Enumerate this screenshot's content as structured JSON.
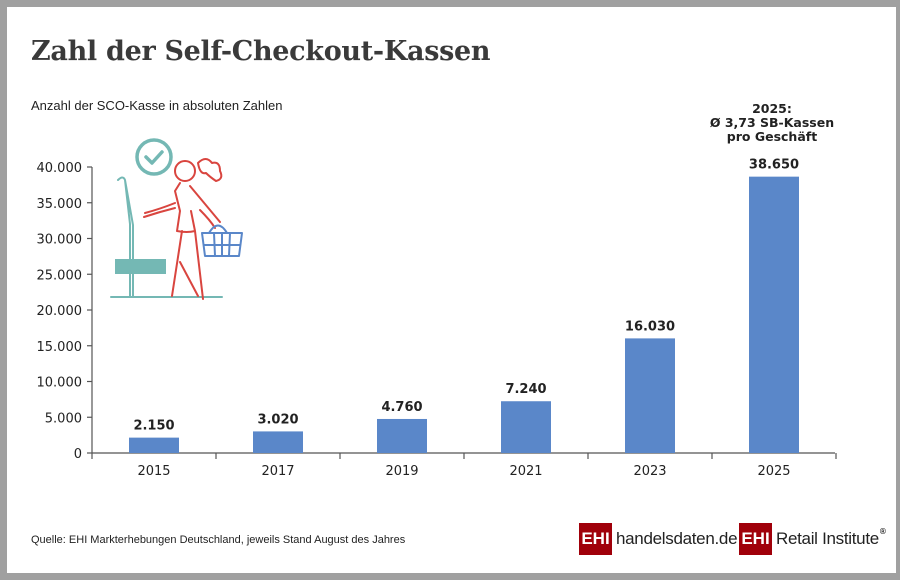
{
  "title": "Zahl der Self-Checkout-Kassen",
  "subtitle": "Anzahl der SCO-Kasse in absoluten Zahlen",
  "annotation": "2025:\nØ 3,73 SB-Kassen\npro Geschäft",
  "source": "Quelle: EHI Markterhebungen Deutschland, jeweils Stand August des Jahres",
  "logos": {
    "ehi": "EHI",
    "handelsdaten_text": "handelsdaten.de",
    "retail_text": "Retail Institute",
    "registered": "®"
  },
  "colors": {
    "bar": "#5a87c9",
    "brand_red": "#a0000a",
    "illustration_teal": "#74b8b4",
    "illustration_red": "#d9453f"
  },
  "chart_data": {
    "type": "bar",
    "categories": [
      "2015",
      "2017",
      "2019",
      "2021",
      "2023",
      "2025"
    ],
    "values": [
      2150,
      3020,
      4760,
      7240,
      16030,
      38650
    ],
    "data_labels": [
      "2.150",
      "3.020",
      "4.760",
      "7.240",
      "16.030",
      "38.650"
    ],
    "title": "Zahl der Self-Checkout-Kassen",
    "ylabel": "Anzahl der SCO-Kasse in absoluten Zahlen",
    "ylim": [
      0,
      40000
    ],
    "yticks": [
      0,
      5000,
      10000,
      15000,
      20000,
      25000,
      30000,
      35000,
      40000
    ],
    "ytick_labels": [
      "0",
      "5.000",
      "10.000",
      "15.000",
      "20.000",
      "25.000",
      "30.000",
      "35.000",
      "40.000"
    ],
    "grid": false,
    "legend": "none"
  }
}
